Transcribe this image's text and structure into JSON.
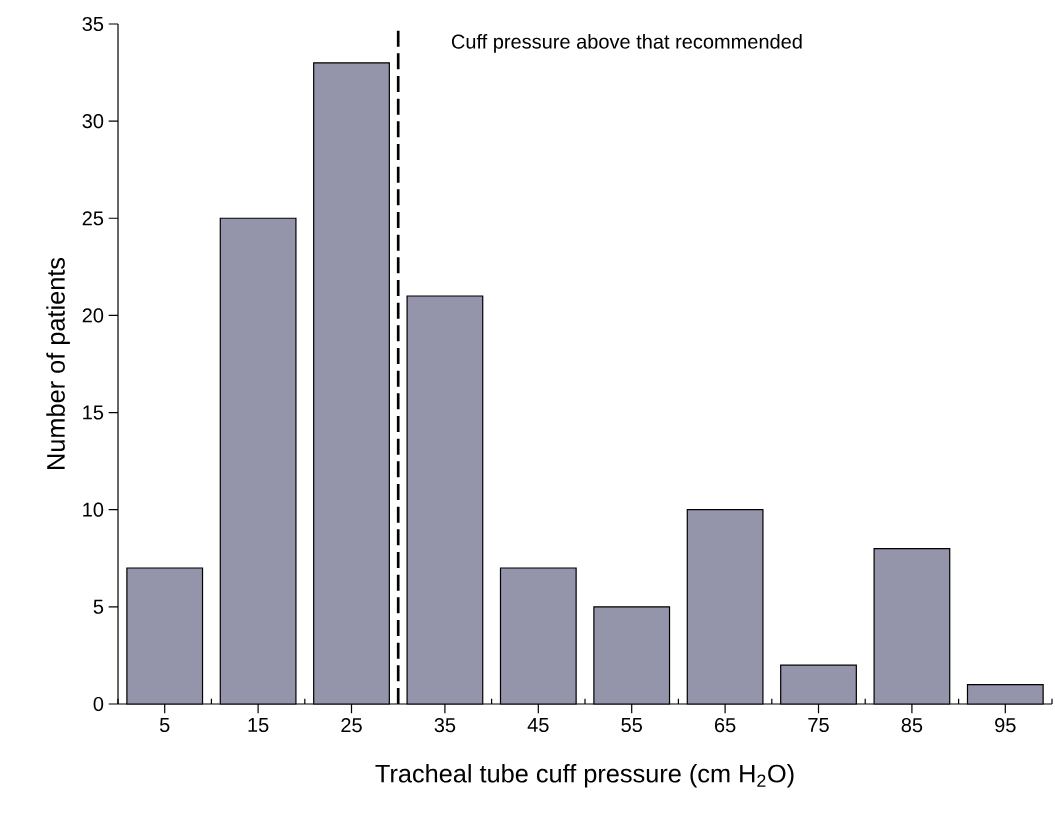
{
  "chart_data": {
    "type": "histogram",
    "xlabel": "Tracheal tube cuff pressure (cm H$_{2}$O)",
    "ylabel": "Number of patients",
    "bins": [
      0,
      10,
      20,
      30,
      40,
      50,
      60,
      70,
      80,
      90,
      100
    ],
    "values": [
      7,
      25,
      33,
      21,
      7,
      5,
      10,
      2,
      8,
      1
    ],
    "color": "#9494ab",
    "xlim": [
      0,
      100
    ],
    "xticks": [
      5,
      15,
      25,
      35,
      45,
      55,
      65,
      75,
      85,
      95
    ],
    "ylim": [
      0,
      35
    ],
    "yticks": [
      0,
      5,
      10,
      15,
      20,
      25,
      30,
      35
    ],
    "ref_lines": [
      {
        "axis": "x",
        "value": 30,
        "label": "Cuff pressure above that recommended",
        "line_style": "dashed",
        "color": "#000000"
      }
    ]
  }
}
